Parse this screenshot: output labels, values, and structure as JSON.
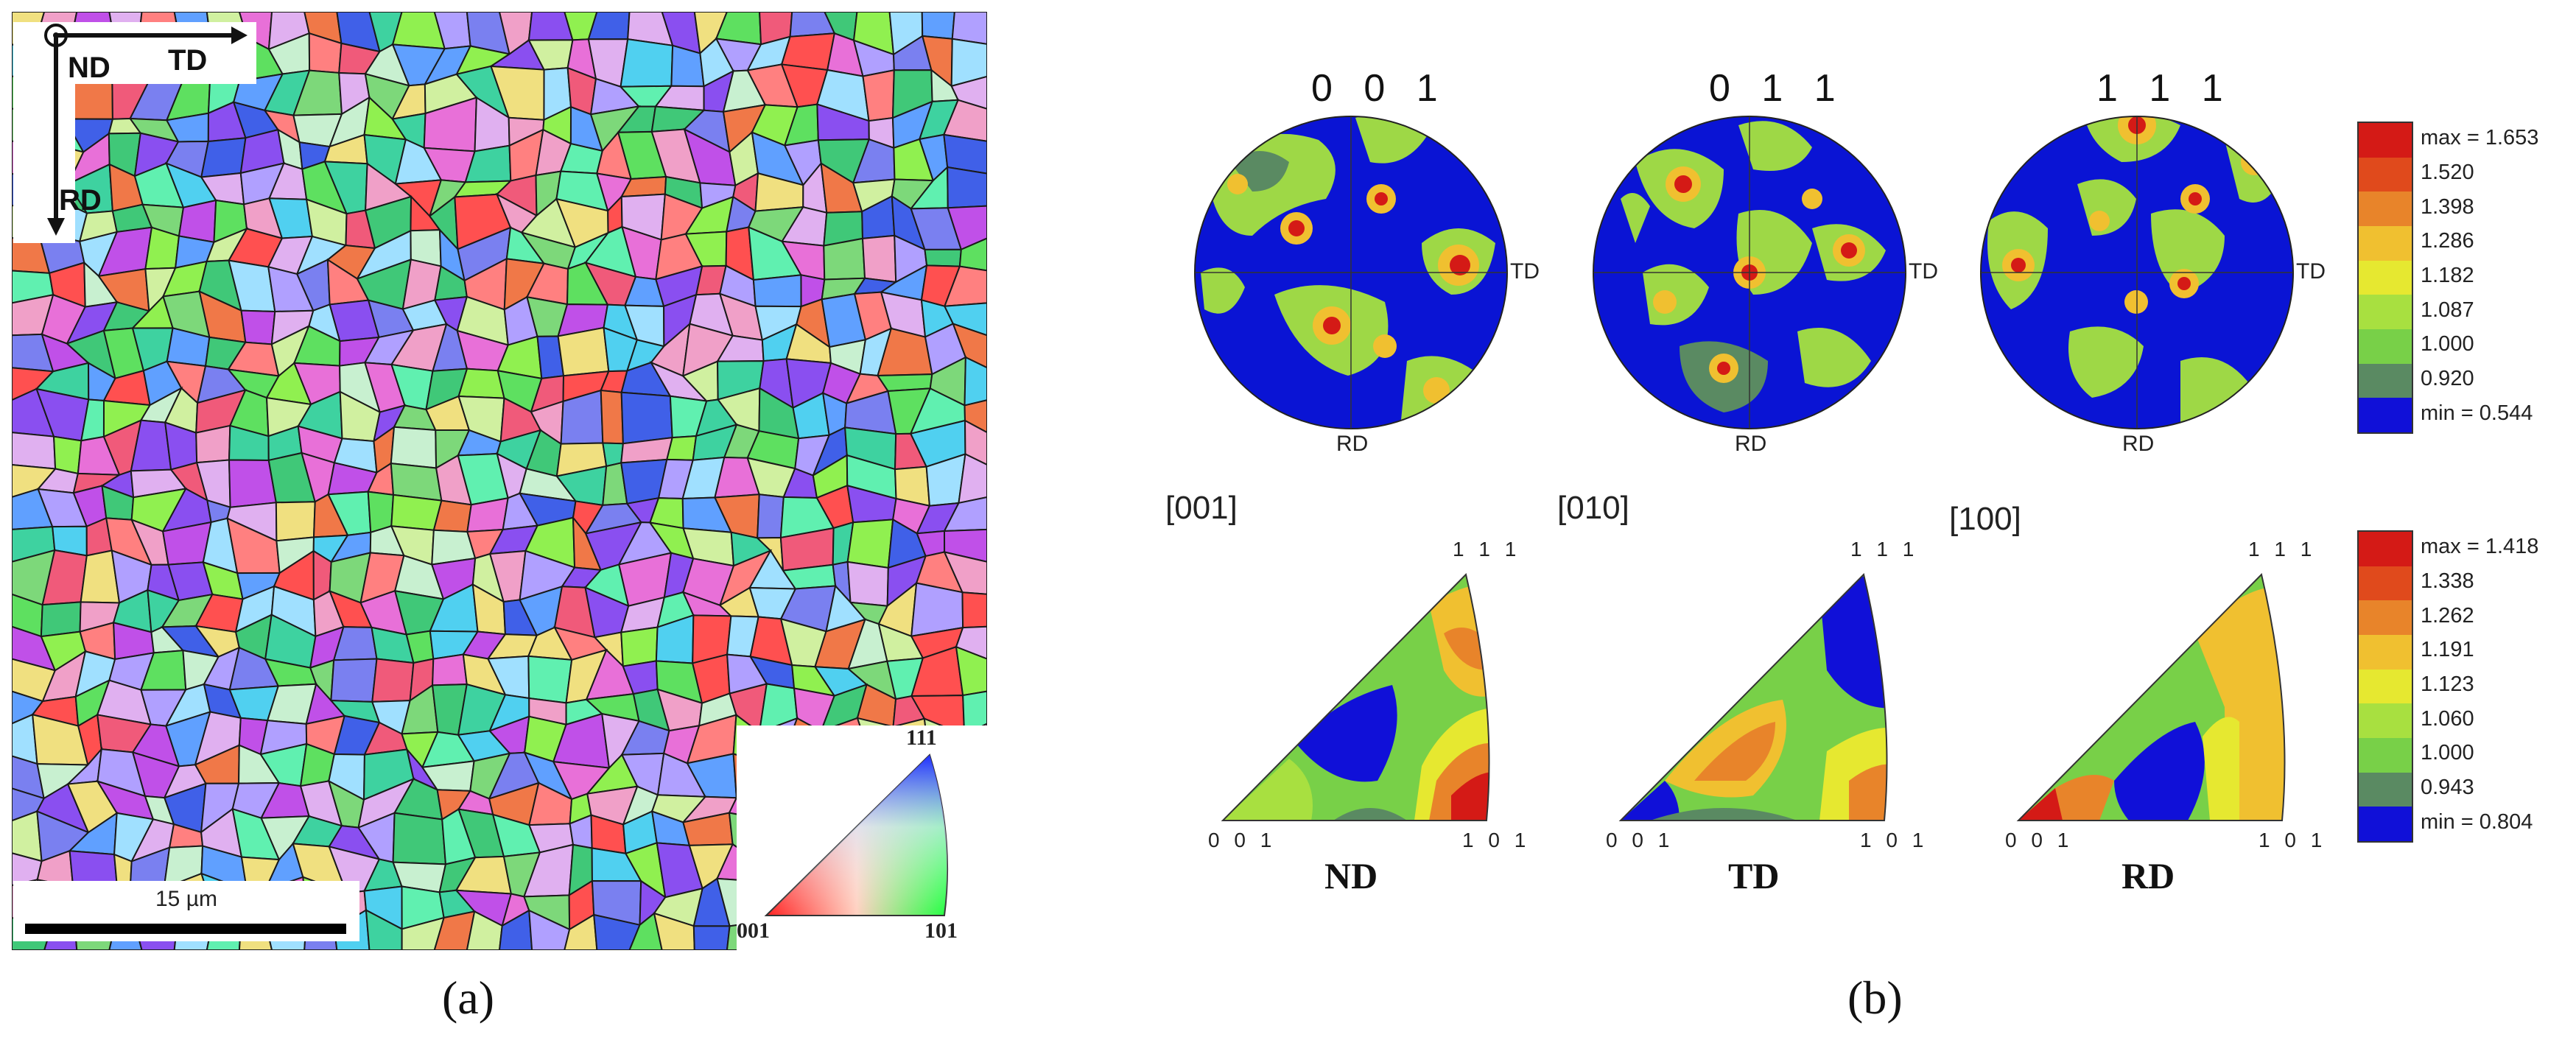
{
  "panel_a": {
    "axes": {
      "normal": "ND",
      "horizontal": "TD",
      "vertical": "RD"
    },
    "scale_bar": "15 µm",
    "ipf_key": {
      "top": "111",
      "left": "001",
      "right": "101"
    },
    "caption": "(a)"
  },
  "panel_b": {
    "pole_figures": [
      {
        "title": "0 0 1",
        "right_label": "TD",
        "bottom_label": "RD"
      },
      {
        "title": "0 1 1",
        "right_label": "TD",
        "bottom_label": "RD"
      },
      {
        "title": "1 1 1",
        "right_label": "TD",
        "bottom_label": "RD"
      }
    ],
    "pole_legend": [
      "max = 1.653",
      "1.520",
      "1.398",
      "1.286",
      "1.182",
      "1.087",
      "1.000",
      "0.920",
      "min = 0.544"
    ],
    "ipf_sections": [
      {
        "direction": "[001]",
        "axis": "ND",
        "top": "1 1 1",
        "left": "0 0 1",
        "right": "1 0 1"
      },
      {
        "direction": "[010]",
        "axis": "TD",
        "top": "1 1 1",
        "left": "0 0 1",
        "right": "1 0 1"
      },
      {
        "direction": "[100]",
        "axis": "RD",
        "top": "1 1 1",
        "left": "0 0 1",
        "right": "1 0 1"
      }
    ],
    "ipf_legend": [
      "max = 1.418",
      "1.338",
      "1.262",
      "1.191",
      "1.123",
      "1.060",
      "1.000",
      "0.943",
      "min = 0.804"
    ],
    "caption": "(b)"
  },
  "colors": {
    "contour_scale": [
      "#d41a16",
      "#e04a1c",
      "#e8842a",
      "#f0c030",
      "#e6e830",
      "#a8e040",
      "#78d048",
      "#5a8a62",
      "#1010d8"
    ]
  }
}
